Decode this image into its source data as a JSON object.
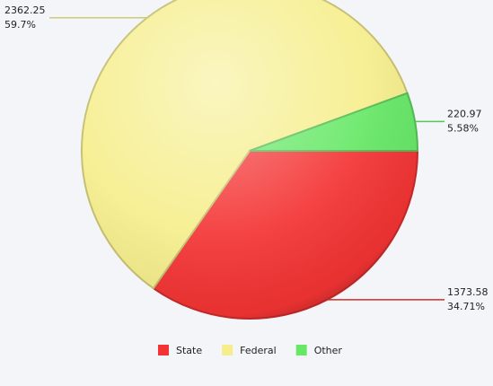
{
  "chart_data": {
    "type": "pie",
    "categories": [
      "State",
      "Federal",
      "Other"
    ],
    "values": [
      1373.58,
      2362.25,
      220.97
    ],
    "percents": [
      34.71,
      59.7,
      5.58
    ],
    "percent_labels": [
      "34.71%",
      "59.7%",
      "5.58%"
    ],
    "colors": [
      "#f43434",
      "#f6ee8c",
      "#66e866"
    ],
    "legend": "bottom"
  }
}
